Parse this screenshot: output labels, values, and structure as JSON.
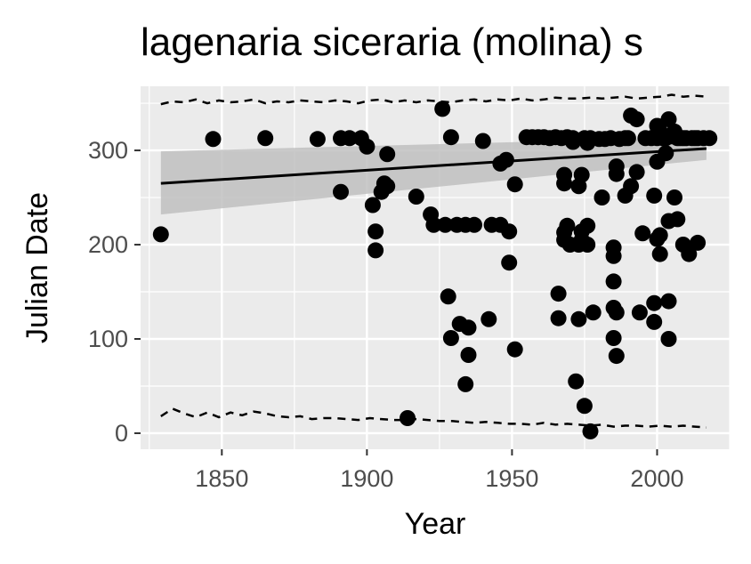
{
  "chart_data": {
    "type": "scatter",
    "title": "lagenaria siceraria (molina) s",
    "xlabel": "Year",
    "ylabel": "Julian Date",
    "xlim": [
      1822,
      2025
    ],
    "ylim": [
      -17,
      368
    ],
    "x_ticks": [
      1850,
      1900,
      1950,
      2000
    ],
    "y_ticks": [
      0,
      100,
      200,
      300
    ],
    "x_tick_labels": [
      "1850",
      "1900",
      "1950",
      "2000"
    ],
    "y_tick_labels": [
      "0",
      "100",
      "200",
      "300"
    ],
    "grid": true,
    "panel_background": "#ebebeb",
    "colors": {
      "points": "#000000",
      "ribbon": "#bdbdbd",
      "grid": "#ffffff",
      "tick_text": "#4d4d4d"
    },
    "trend": {
      "x": [
        1829,
        2017
      ],
      "y": [
        265,
        302
      ],
      "ribbon_lower": [
        232,
        290
      ],
      "ribbon_upper": [
        299,
        314
      ]
    },
    "upper_band": [
      [
        1829,
        349
      ],
      [
        1833,
        352
      ],
      [
        1837,
        351
      ],
      [
        1841,
        354
      ],
      [
        1845,
        350
      ],
      [
        1849,
        353
      ],
      [
        1853,
        351
      ],
      [
        1857,
        352
      ],
      [
        1861,
        354
      ],
      [
        1865,
        350
      ],
      [
        1869,
        352
      ],
      [
        1873,
        351
      ],
      [
        1877,
        353
      ],
      [
        1881,
        352
      ],
      [
        1885,
        351
      ],
      [
        1889,
        353
      ],
      [
        1893,
        352
      ],
      [
        1897,
        350
      ],
      [
        1901,
        353
      ],
      [
        1905,
        354
      ],
      [
        1909,
        351
      ],
      [
        1913,
        353
      ],
      [
        1917,
        351
      ],
      [
        1921,
        353
      ],
      [
        1925,
        352
      ],
      [
        1929,
        351
      ],
      [
        1933,
        353
      ],
      [
        1937,
        354
      ],
      [
        1941,
        352
      ],
      [
        1945,
        354
      ],
      [
        1949,
        353
      ],
      [
        1953,
        355
      ],
      [
        1957,
        353
      ],
      [
        1961,
        354
      ],
      [
        1965,
        356
      ],
      [
        1969,
        355
      ],
      [
        1973,
        355
      ],
      [
        1977,
        356
      ],
      [
        1981,
        355
      ],
      [
        1985,
        356
      ],
      [
        1989,
        357
      ],
      [
        1993,
        355
      ],
      [
        1997,
        356
      ],
      [
        2001,
        357
      ],
      [
        2005,
        359
      ],
      [
        2009,
        357
      ],
      [
        2013,
        358
      ],
      [
        2017,
        357
      ]
    ],
    "lower_band": [
      [
        1829,
        18
      ],
      [
        1833,
        26
      ],
      [
        1837,
        21
      ],
      [
        1841,
        17
      ],
      [
        1845,
        22
      ],
      [
        1849,
        17
      ],
      [
        1853,
        22
      ],
      [
        1857,
        19
      ],
      [
        1861,
        23
      ],
      [
        1865,
        21
      ],
      [
        1869,
        18
      ],
      [
        1873,
        17
      ],
      [
        1877,
        18
      ],
      [
        1881,
        15
      ],
      [
        1885,
        16
      ],
      [
        1889,
        16
      ],
      [
        1893,
        15
      ],
      [
        1897,
        14
      ],
      [
        1901,
        16
      ],
      [
        1905,
        15
      ],
      [
        1909,
        14
      ],
      [
        1913,
        14
      ],
      [
        1917,
        15
      ],
      [
        1921,
        14
      ],
      [
        1925,
        13
      ],
      [
        1929,
        13
      ],
      [
        1933,
        12
      ],
      [
        1937,
        11
      ],
      [
        1941,
        12
      ],
      [
        1945,
        11
      ],
      [
        1949,
        10
      ],
      [
        1953,
        10
      ],
      [
        1957,
        9
      ],
      [
        1961,
        11
      ],
      [
        1965,
        9
      ],
      [
        1969,
        10
      ],
      [
        1973,
        9
      ],
      [
        1977,
        8
      ],
      [
        1981,
        9
      ],
      [
        1985,
        7
      ],
      [
        1989,
        8
      ],
      [
        1993,
        8
      ],
      [
        1997,
        7
      ],
      [
        2001,
        8
      ],
      [
        2005,
        7
      ],
      [
        2009,
        8
      ],
      [
        2013,
        7
      ],
      [
        2017,
        6
      ]
    ],
    "points": [
      [
        1829,
        211
      ],
      [
        1847,
        312
      ],
      [
        1865,
        313
      ],
      [
        1883,
        312
      ],
      [
        1891,
        313
      ],
      [
        1894,
        313
      ],
      [
        1898,
        313
      ],
      [
        1891,
        256
      ],
      [
        1900,
        304
      ],
      [
        1902,
        242
      ],
      [
        1903,
        214
      ],
      [
        1903,
        194
      ],
      [
        1905,
        256
      ],
      [
        1906,
        265
      ],
      [
        1907,
        296
      ],
      [
        1907,
        262
      ],
      [
        1914,
        16
      ],
      [
        1917,
        251
      ],
      [
        1922,
        232
      ],
      [
        1923,
        221
      ],
      [
        1926,
        344
      ],
      [
        1927,
        221
      ],
      [
        1928,
        145
      ],
      [
        1929,
        101
      ],
      [
        1929,
        314
      ],
      [
        1931,
        221
      ],
      [
        1932,
        116
      ],
      [
        1934,
        221
      ],
      [
        1934,
        52
      ],
      [
        1935,
        112
      ],
      [
        1935,
        83
      ],
      [
        1937,
        221
      ],
      [
        1940,
        310
      ],
      [
        1942,
        121
      ],
      [
        1943,
        221
      ],
      [
        1946,
        221
      ],
      [
        1946,
        286
      ],
      [
        1948,
        290
      ],
      [
        1949,
        214
      ],
      [
        1949,
        181
      ],
      [
        1951,
        264
      ],
      [
        1951,
        89
      ],
      [
        1955,
        314
      ],
      [
        1957,
        314
      ],
      [
        1959,
        314
      ],
      [
        1961,
        314
      ],
      [
        1963,
        313
      ],
      [
        1965,
        314
      ],
      [
        1966,
        148
      ],
      [
        1966,
        122
      ],
      [
        1967,
        313
      ],
      [
        1968,
        274
      ],
      [
        1968,
        265
      ],
      [
        1968,
        213
      ],
      [
        1968,
        205
      ],
      [
        1969,
        220
      ],
      [
        1969,
        314
      ],
      [
        1970,
        200
      ],
      [
        1971,
        309
      ],
      [
        1971,
        313
      ],
      [
        1972,
        55
      ],
      [
        1973,
        121
      ],
      [
        1973,
        200
      ],
      [
        1973,
        262
      ],
      [
        1974,
        274
      ],
      [
        1974,
        205
      ],
      [
        1974,
        214
      ],
      [
        1975,
        29
      ],
      [
        1975,
        313
      ],
      [
        1976,
        312
      ],
      [
        1976,
        308
      ],
      [
        1976,
        220
      ],
      [
        1976,
        200
      ],
      [
        1977,
        313
      ],
      [
        1977,
        2
      ],
      [
        1978,
        128
      ],
      [
        1980,
        312
      ],
      [
        1981,
        250
      ],
      [
        1982,
        312
      ],
      [
        1984,
        313
      ],
      [
        1985,
        101
      ],
      [
        1985,
        161
      ],
      [
        1985,
        197
      ],
      [
        1985,
        188
      ],
      [
        1985,
        133
      ],
      [
        1986,
        128
      ],
      [
        1986,
        82
      ],
      [
        1986,
        283
      ],
      [
        1986,
        275
      ],
      [
        1987,
        312
      ],
      [
        1989,
        313
      ],
      [
        1989,
        252
      ],
      [
        1990,
        313
      ],
      [
        1991,
        337
      ],
      [
        1991,
        262
      ],
      [
        1993,
        277
      ],
      [
        1993,
        333
      ],
      [
        1994,
        128
      ],
      [
        1995,
        212
      ],
      [
        1996,
        313
      ],
      [
        1998,
        313
      ],
      [
        1999,
        252
      ],
      [
        1999,
        118
      ],
      [
        1999,
        138
      ],
      [
        2000,
        206
      ],
      [
        2000,
        313
      ],
      [
        2000,
        326
      ],
      [
        2000,
        288
      ],
      [
        2001,
        320
      ],
      [
        2001,
        210
      ],
      [
        2001,
        190
      ],
      [
        2002,
        313
      ],
      [
        2003,
        313
      ],
      [
        2003,
        297
      ],
      [
        2004,
        140
      ],
      [
        2004,
        100
      ],
      [
        2004,
        225
      ],
      [
        2004,
        333
      ],
      [
        2005,
        315
      ],
      [
        2006,
        320
      ],
      [
        2006,
        250
      ],
      [
        2007,
        227
      ],
      [
        2007,
        313
      ],
      [
        2008,
        313
      ],
      [
        2009,
        200
      ],
      [
        2009,
        313
      ],
      [
        2010,
        313
      ],
      [
        2011,
        190
      ],
      [
        2012,
        313
      ],
      [
        2013,
        313
      ],
      [
        2014,
        202
      ],
      [
        2014,
        313
      ],
      [
        2016,
        313
      ],
      [
        2018,
        313
      ]
    ]
  }
}
